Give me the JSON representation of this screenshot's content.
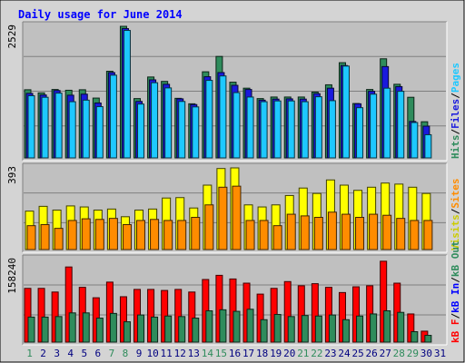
{
  "chart_data": {
    "type": "bar",
    "title": "Daily usage for June 2014",
    "colors": {
      "title": "#0000ff",
      "hits": "#2f8c5c",
      "files": "#1a1add",
      "pages": "#1ec8ff",
      "visits": "#ffff00",
      "sites": "#ff8c00",
      "kbf": "#ff0000",
      "kbin": "#0000ff",
      "kbout": "#2f8c5c",
      "panel_bg": "#c0c0c0",
      "grid": "#808080",
      "weekend_label": "#2f8c5c",
      "weekday_label": "#000080"
    },
    "days": [
      "1",
      "2",
      "3",
      "4",
      "5",
      "6",
      "7",
      "8",
      "9",
      "10",
      "11",
      "12",
      "13",
      "14",
      "15",
      "16",
      "17",
      "18",
      "19",
      "20",
      "21",
      "22",
      "23",
      "24",
      "25",
      "26",
      "27",
      "28",
      "29",
      "30",
      "31"
    ],
    "weekend_days": [
      "1",
      "7",
      "8",
      "14",
      "15",
      "21",
      "22",
      "28",
      "29"
    ],
    "panels": [
      {
        "id": "hits_files_pages",
        "ymax": 2529,
        "ytick_label": "2529",
        "side_labels": [
          {
            "text": "Hits",
            "color": "#2f8c5c"
          },
          {
            "text": "/",
            "color": "#000000"
          },
          {
            "text": "Files",
            "color": "#1a1add"
          },
          {
            "text": "/",
            "color": "#000000"
          },
          {
            "text": "Pages",
            "color": "#1ec8ff"
          }
        ],
        "series": [
          {
            "name": "Hits",
            "color": "#2f8c5c",
            "values": [
              1310,
              1250,
              1315,
              1300,
              1310,
              1150,
              1665,
              2529,
              1140,
              1555,
              1470,
              1145,
              1040,
              1655,
              1950,
              1455,
              1340,
              1140,
              1170,
              1170,
              1170,
              1265,
              1405,
              1830,
              1045,
              1315,
              1905,
              1415,
              1165,
              695,
              0
            ]
          },
          {
            "name": "Files",
            "color": "#1a1add",
            "values": [
              1240,
              1210,
              1295,
              1205,
              1225,
              1055,
              1640,
              2485,
              1085,
              1500,
              1415,
              1135,
              1025,
              1560,
              1640,
              1395,
              1315,
              1110,
              1130,
              1135,
              1130,
              1235,
              1340,
              1775,
              1040,
              1280,
              1755,
              1370,
              700,
              610,
              0
            ]
          },
          {
            "name": "Pages",
            "color": "#1ec8ff",
            "values": [
              1195,
              1165,
              1245,
              1080,
              1110,
              985,
              1590,
              2450,
              1035,
              1445,
              1345,
              1085,
              980,
              1490,
              1575,
              1255,
              1170,
              1080,
              1095,
              1095,
              1080,
              1175,
              1100,
              1765,
              965,
              1225,
              1340,
              1280,
              680,
              445,
              0
            ]
          }
        ]
      },
      {
        "id": "visits_sites",
        "ymax": 393,
        "ytick_label": "393",
        "side_labels": [
          {
            "text": "Visits",
            "color": "#cccc00"
          },
          {
            "text": "/",
            "color": "#000000"
          },
          {
            "text": "Sites",
            "color": "#ff8c00"
          }
        ],
        "series": [
          {
            "name": "Visits",
            "color": "#ffff00",
            "values": [
              185,
              208,
              190,
              210,
              205,
              190,
              195,
              158,
              190,
              195,
              248,
              250,
              200,
              310,
              390,
              393,
              215,
              205,
              215,
              260,
              296,
              270,
              335,
              310,
              285,
              300,
              320,
              315,
              300,
              270,
              0
            ]
          },
          {
            "name": "Sites",
            "color": "#ff8c00",
            "values": [
              115,
              120,
              102,
              140,
              148,
              145,
              150,
              120,
              140,
              145,
              140,
              140,
              155,
              215,
              300,
              305,
              140,
              140,
              115,
              170,
              162,
              155,
              180,
              170,
              155,
              170,
              165,
              150,
              140,
              140,
              0
            ]
          }
        ]
      },
      {
        "id": "kb",
        "ymax": 158240,
        "ytick_label": "158240",
        "side_labels": [
          {
            "text": "kB F",
            "color": "#ff0000"
          },
          {
            "text": "/",
            "color": "#000000"
          },
          {
            "text": "kB In",
            "color": "#0000ff"
          },
          {
            "text": "/",
            "color": "#000000"
          },
          {
            "text": "kB Out",
            "color": "#2f8c5c"
          }
        ],
        "series": [
          {
            "name": "kB F",
            "color": "#ff0000",
            "values": [
              103000,
              103000,
              96000,
              144000,
              105000,
              85000,
              115000,
              87000,
              101000,
              101000,
              99000,
              101000,
              96000,
              120000,
              128000,
              121000,
              113000,
              92000,
              103000,
              116000,
              108000,
              112000,
              105000,
              95000,
              106000,
              108000,
              155000,
              113000,
              54000,
              21000,
              0
            ]
          },
          {
            "name": "kB In",
            "color": "#0000ff",
            "values": [
              0,
              0,
              0,
              0,
              0,
              0,
              0,
              0,
              0,
              0,
              0,
              0,
              0,
              0,
              0,
              0,
              0,
              0,
              0,
              0,
              0,
              0,
              0,
              0,
              0,
              0,
              0,
              0,
              0,
              0,
              0
            ]
          },
          {
            "name": "kB Out",
            "color": "#2f8c5c",
            "values": [
              48000,
              48000,
              49000,
              56000,
              56000,
              46000,
              55000,
              39000,
              52000,
              48000,
              50000,
              49000,
              46000,
              60000,
              62000,
              59000,
              63000,
              43000,
              53000,
              49000,
              51000,
              50000,
              52000,
              43000,
              50000,
              54000,
              60000,
              57000,
              20000,
              13000,
              0
            ]
          }
        ]
      }
    ]
  }
}
